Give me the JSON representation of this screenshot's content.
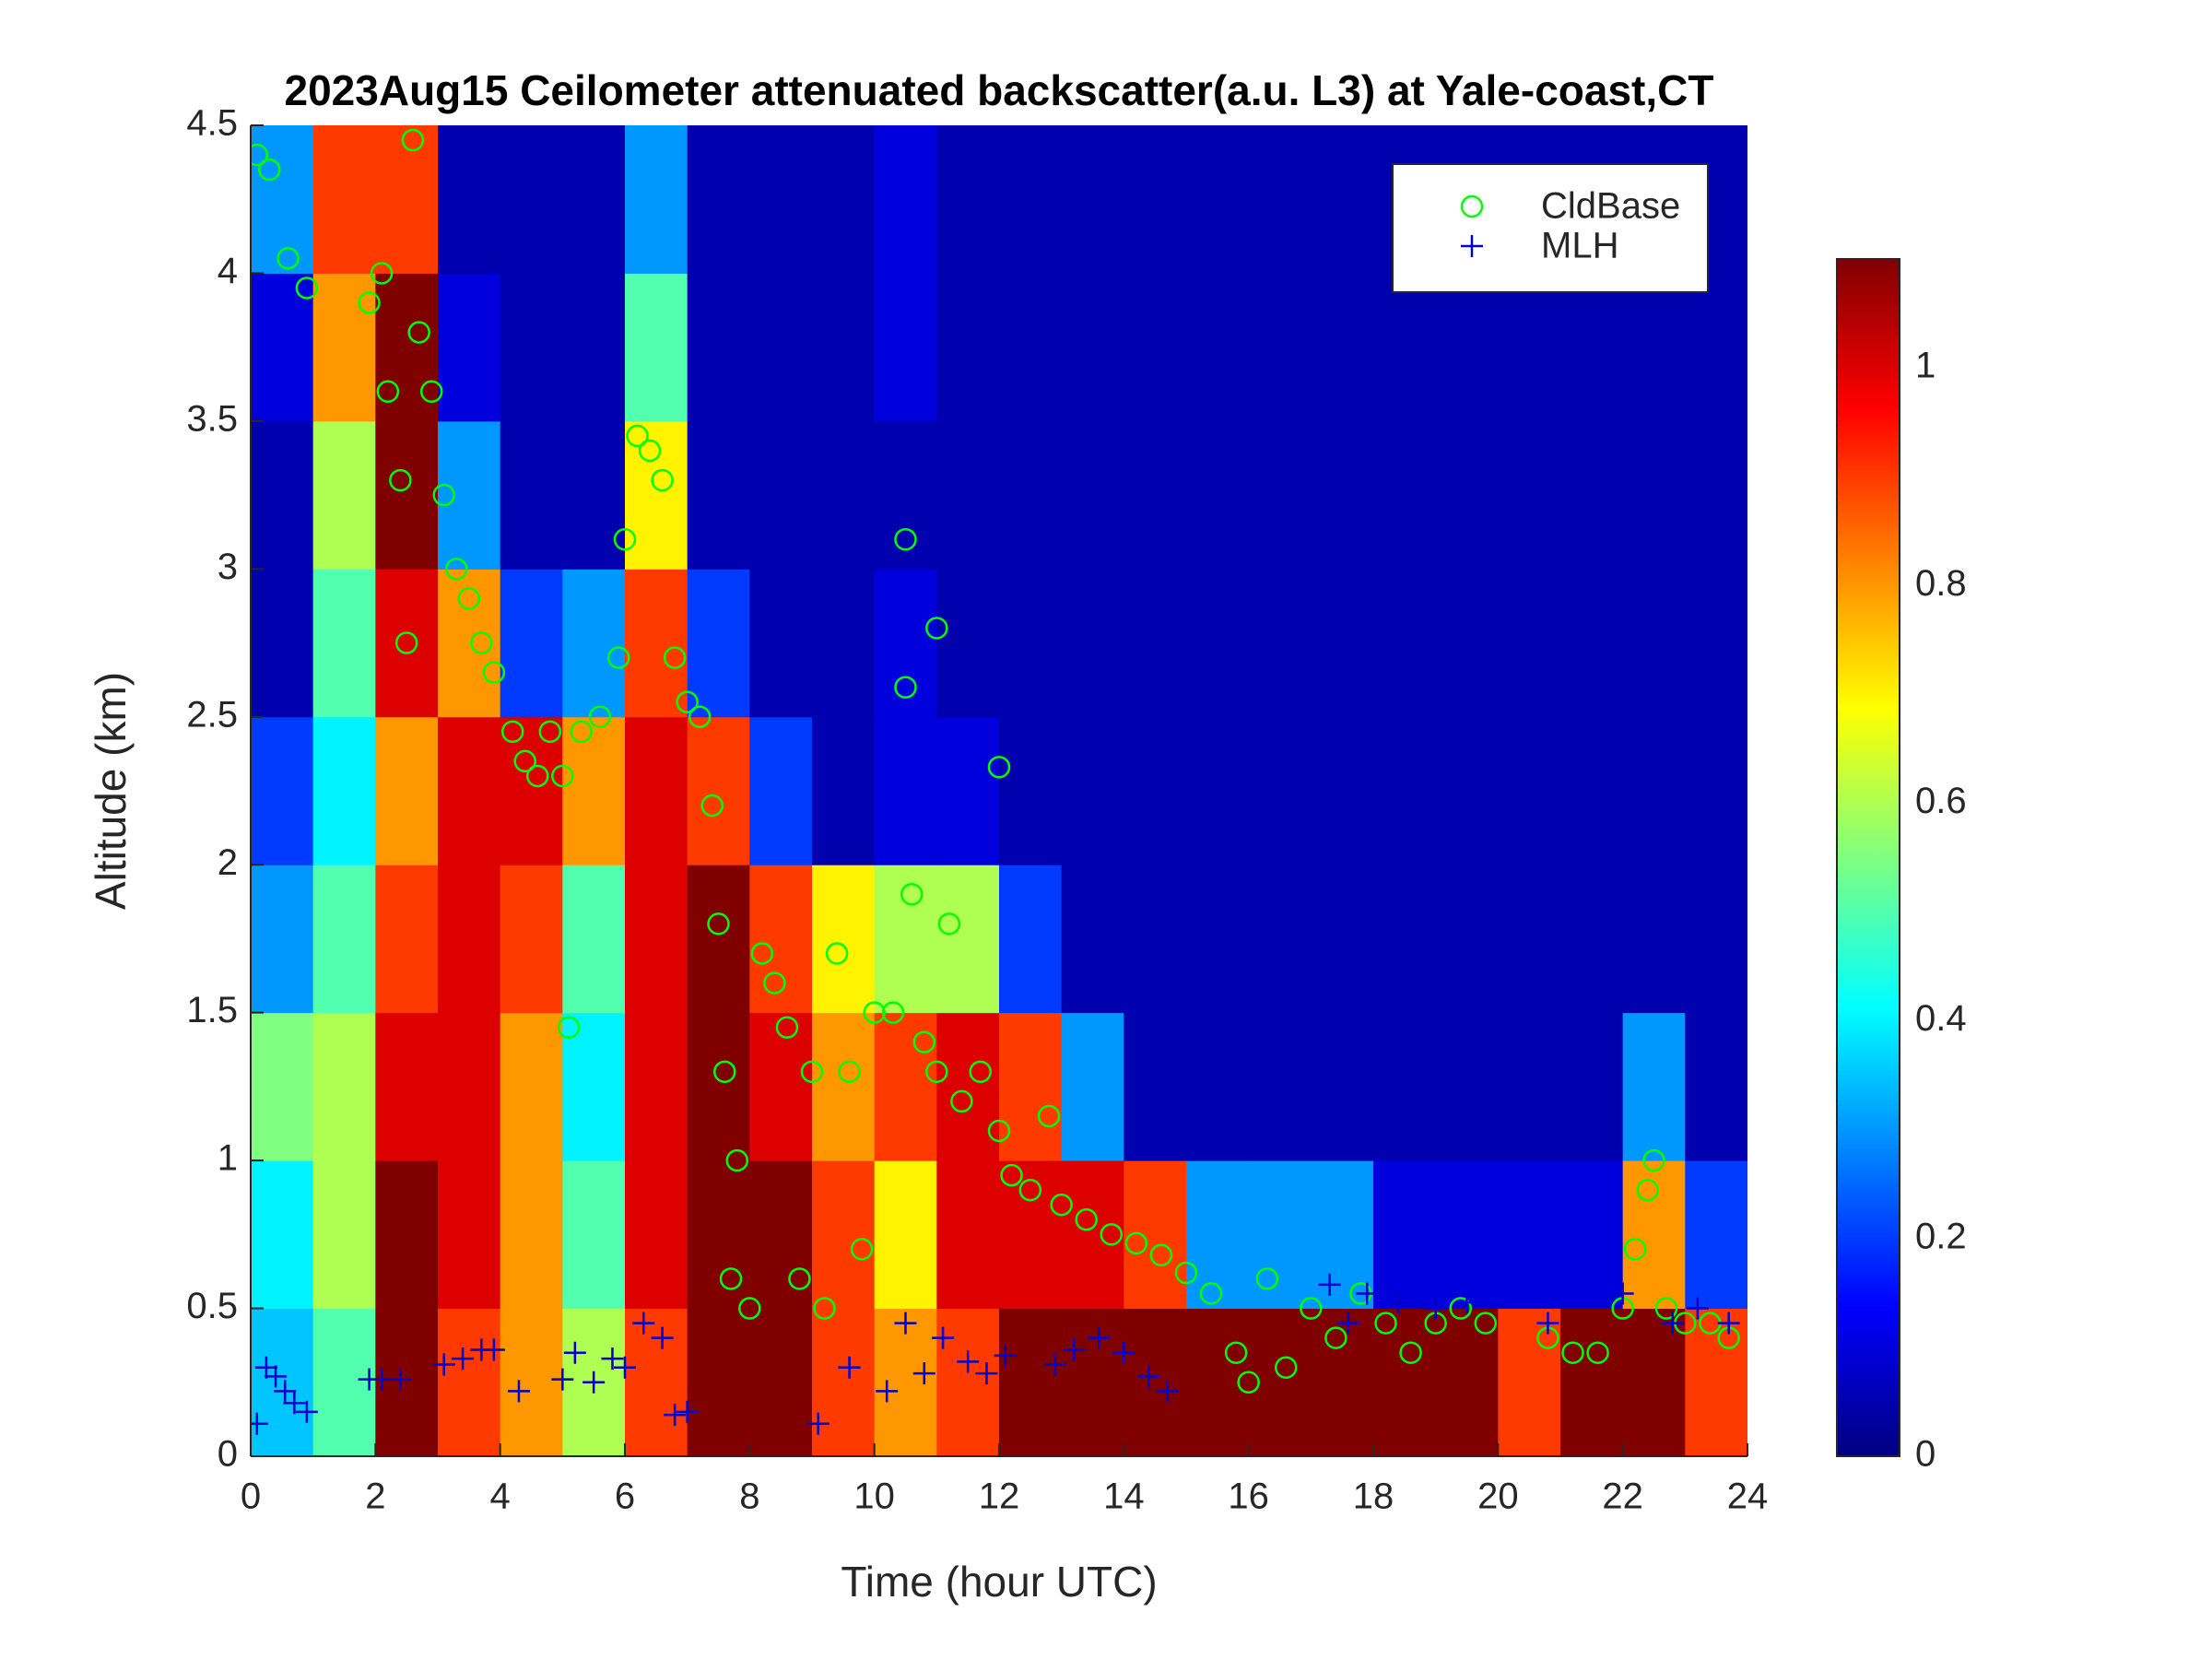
{
  "chart_data": {
    "type": "heatmap",
    "title": "2023Aug15 Ceilometer attenuated backscatter(a.u. L3) at Yale-coast,CT",
    "xlabel": "Time (hour UTC)",
    "ylabel": "Altitude (km)",
    "xlim": [
      0,
      24
    ],
    "xticks": [
      0,
      2,
      4,
      6,
      8,
      10,
      12,
      14,
      16,
      18,
      20,
      22,
      24
    ],
    "ylim": [
      0,
      4.5
    ],
    "yticks": [
      0,
      0.5,
      1,
      1.5,
      2,
      2.5,
      3,
      3.5,
      4,
      4.5
    ],
    "colormap": "jet",
    "clim": [
      0,
      1.1
    ],
    "cticks": [
      0,
      0.2,
      0.4,
      0.6,
      0.8,
      1
    ],
    "x_edges": [
      0,
      1,
      2,
      3,
      4,
      5,
      6,
      7,
      8,
      9,
      10,
      11,
      12,
      13,
      14,
      15,
      16,
      17,
      18,
      19,
      20,
      21,
      22,
      23,
      24
    ],
    "y_edges": [
      0,
      0.5,
      1,
      1.5,
      2,
      2.5,
      3,
      3.5,
      4,
      4.5
    ],
    "z": [
      [
        0.35,
        0.5,
        1.1,
        0.9,
        0.8,
        0.6,
        0.9,
        1.1,
        1.1,
        0.9,
        0.8,
        0.9,
        1.1,
        1.1,
        1.1,
        1.1,
        1.1,
        1.1,
        1.1,
        1.1,
        0.9,
        1.1,
        1.1,
        0.9
      ],
      [
        0.4,
        0.6,
        1.1,
        1.0,
        0.8,
        0.5,
        1.0,
        1.1,
        1.1,
        0.9,
        0.7,
        1.0,
        1.0,
        1.0,
        0.9,
        0.3,
        0.3,
        0.3,
        0.1,
        0.1,
        0.1,
        0.1,
        0.8,
        0.2
      ],
      [
        0.55,
        0.6,
        1.0,
        1.0,
        0.8,
        0.4,
        1.0,
        1.1,
        1.0,
        0.8,
        0.9,
        1.0,
        0.9,
        0.3,
        0.05,
        0.05,
        0.05,
        0.05,
        0.05,
        0.05,
        0.05,
        0.05,
        0.3,
        0.05
      ],
      [
        0.3,
        0.5,
        0.9,
        1.0,
        0.9,
        0.5,
        1.0,
        1.1,
        0.9,
        0.7,
        0.6,
        0.6,
        0.2,
        0.05,
        0.05,
        0.05,
        0.05,
        0.05,
        0.05,
        0.05,
        0.05,
        0.05,
        0.05,
        0.05
      ],
      [
        0.2,
        0.4,
        0.8,
        1.0,
        1.0,
        0.8,
        1.0,
        0.9,
        0.2,
        0.05,
        0.1,
        0.1,
        0.05,
        0.05,
        0.05,
        0.05,
        0.05,
        0.05,
        0.05,
        0.05,
        0.05,
        0.05,
        0.05,
        0.05
      ],
      [
        0.05,
        0.5,
        1.0,
        0.8,
        0.2,
        0.3,
        0.9,
        0.2,
        0.05,
        0.05,
        0.1,
        0.05,
        0.05,
        0.05,
        0.05,
        0.05,
        0.05,
        0.05,
        0.05,
        0.05,
        0.05,
        0.05,
        0.05,
        0.05
      ],
      [
        0.05,
        0.6,
        1.1,
        0.3,
        0.05,
        0.05,
        0.7,
        0.05,
        0.05,
        0.05,
        0.05,
        0.05,
        0.05,
        0.05,
        0.05,
        0.05,
        0.05,
        0.05,
        0.05,
        0.05,
        0.05,
        0.05,
        0.05,
        0.05
      ],
      [
        0.1,
        0.8,
        1.1,
        0.1,
        0.05,
        0.05,
        0.5,
        0.05,
        0.05,
        0.05,
        0.1,
        0.05,
        0.05,
        0.05,
        0.05,
        0.05,
        0.05,
        0.05,
        0.05,
        0.05,
        0.05,
        0.05,
        0.05,
        0.05
      ],
      [
        0.3,
        0.9,
        0.9,
        0.05,
        0.05,
        0.05,
        0.3,
        0.05,
        0.05,
        0.05,
        0.1,
        0.05,
        0.05,
        0.05,
        0.05,
        0.05,
        0.05,
        0.05,
        0.05,
        0.05,
        0.05,
        0.05,
        0.05,
        0.05
      ]
    ],
    "legend": "northeast",
    "series": [
      {
        "name": "CldBase",
        "color": "#00ff00",
        "marker": "circle",
        "x": [
          0.1,
          0.3,
          0.6,
          0.9,
          1.9,
          2.1,
          2.2,
          2.4,
          2.5,
          2.6,
          2.7,
          2.9,
          3.1,
          3.3,
          3.5,
          3.7,
          3.9,
          4.2,
          4.4,
          4.6,
          4.8,
          5.0,
          5.1,
          5.3,
          5.6,
          5.9,
          6.0,
          6.2,
          6.4,
          6.6,
          6.8,
          7.0,
          7.2,
          7.4,
          7.5,
          7.6,
          7.7,
          7.8,
          8.0,
          8.2,
          8.4,
          8.6,
          8.8,
          9.0,
          9.2,
          9.4,
          9.6,
          9.8,
          10.0,
          10.3,
          10.5,
          10.5,
          10.6,
          10.8,
          11.0,
          11.0,
          11.2,
          11.4,
          11.7,
          12.0,
          12.0,
          12.2,
          12.5,
          12.8,
          13.0,
          13.4,
          13.8,
          14.2,
          14.6,
          15.0,
          15.4,
          15.8,
          16.0,
          16.3,
          16.6,
          17.0,
          17.4,
          17.8,
          18.2,
          18.6,
          19.0,
          19.4,
          19.8,
          20.8,
          21.2,
          21.6,
          22.0,
          22.2,
          22.4,
          22.5,
          22.7,
          23.0,
          23.4,
          23.7
        ],
        "y": [
          4.4,
          4.35,
          4.05,
          3.95,
          3.9,
          4.0,
          3.6,
          3.3,
          2.75,
          4.45,
          3.8,
          3.6,
          3.25,
          3.0,
          2.9,
          2.75,
          2.65,
          2.45,
          2.35,
          2.3,
          2.45,
          2.3,
          1.45,
          2.45,
          2.5,
          2.7,
          3.1,
          3.45,
          3.4,
          3.3,
          2.7,
          2.55,
          2.5,
          2.2,
          1.8,
          1.3,
          0.6,
          1.0,
          0.5,
          1.7,
          1.6,
          1.45,
          0.6,
          1.3,
          0.5,
          1.7,
          1.3,
          0.7,
          1.5,
          1.5,
          3.1,
          2.6,
          1.9,
          1.4,
          1.3,
          2.8,
          1.8,
          1.2,
          1.3,
          1.1,
          2.33,
          0.95,
          0.9,
          1.15,
          0.85,
          0.8,
          0.75,
          0.72,
          0.68,
          0.62,
          0.55,
          0.35,
          0.25,
          0.6,
          0.3,
          0.5,
          0.4,
          0.55,
          0.45,
          0.35,
          0.45,
          0.5,
          0.45,
          0.4,
          0.35,
          0.35,
          0.5,
          0.7,
          0.9,
          1.0,
          0.5,
          0.45,
          0.45,
          0.4
        ]
      },
      {
        "name": "MLH",
        "color": "#0000cc",
        "marker": "plus",
        "x": [
          0.1,
          0.25,
          0.4,
          0.55,
          0.7,
          0.9,
          1.9,
          2.1,
          2.4,
          3.1,
          3.4,
          3.7,
          3.9,
          4.3,
          5.0,
          5.2,
          5.5,
          5.8,
          6.0,
          6.3,
          6.6,
          6.8,
          7.0,
          9.1,
          9.6,
          10.2,
          10.5,
          10.8,
          11.1,
          11.5,
          11.8,
          12.1,
          12.9,
          13.2,
          13.6,
          14.0,
          14.4,
          14.7,
          17.3,
          17.6,
          17.9,
          18.4,
          19.0,
          19.5,
          20.8,
          22.0,
          22.8,
          23.2,
          23.7
        ],
        "y": [
          0.11,
          0.3,
          0.27,
          0.22,
          0.18,
          0.15,
          0.26,
          0.26,
          0.26,
          0.31,
          0.33,
          0.36,
          0.36,
          0.22,
          0.26,
          0.35,
          0.25,
          0.33,
          0.3,
          0.45,
          0.4,
          0.14,
          0.15,
          0.11,
          0.3,
          0.22,
          0.45,
          0.28,
          0.4,
          0.32,
          0.28,
          0.34,
          0.31,
          0.36,
          0.4,
          0.35,
          0.27,
          0.22,
          0.58,
          0.45,
          0.55,
          0.52,
          0.5,
          0.52,
          0.45,
          0.55,
          0.45,
          0.5,
          0.45
        ]
      }
    ]
  }
}
